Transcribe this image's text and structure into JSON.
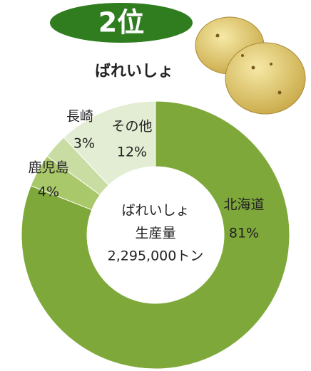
{
  "chart_data": {
    "type": "donut",
    "rank": "2位",
    "title": "ばれいしょ",
    "categories": [
      "北海道",
      "鹿児島",
      "長崎",
      "その他"
    ],
    "values": [
      81,
      4,
      3,
      12
    ],
    "value_labels": [
      "81%",
      "4%",
      "3%",
      "12%"
    ],
    "colors": [
      "#7fa83a",
      "#a9c86a",
      "#c9dca2",
      "#e3edd3"
    ],
    "center_text": [
      "ばれいしょ",
      "生産量",
      "2,295,000トン"
    ]
  }
}
